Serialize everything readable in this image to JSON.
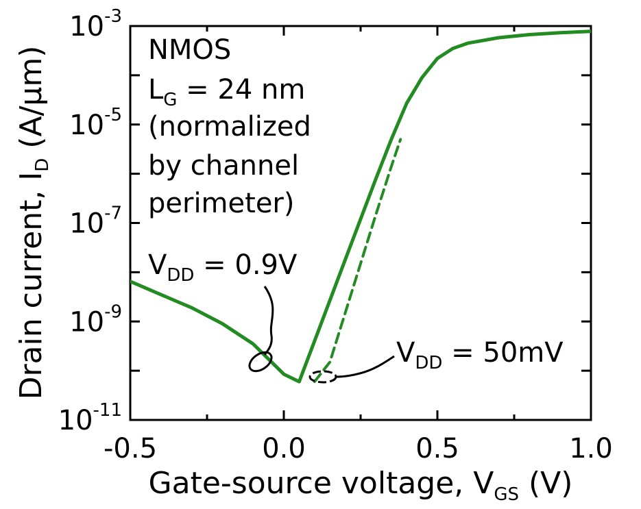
{
  "chart_data": {
    "type": "line",
    "title": "",
    "xlabel": "Gate-source voltage, V",
    "xlabel_sub": "GS",
    "xlabel_unit": " (V)",
    "ylabel": "Drain current, I",
    "ylabel_sub": "D",
    "ylabel_unit": " (A/µm)",
    "xlim": [
      -0.5,
      1.0
    ],
    "ylim": [
      1e-11,
      0.001
    ],
    "yscale": "log",
    "grid": false,
    "x_ticks": [
      {
        "value": -0.5,
        "label": "-0.5"
      },
      {
        "value": 0.0,
        "label": "0.0"
      },
      {
        "value": 0.5,
        "label": "0.5"
      },
      {
        "value": 1.0,
        "label": "1.0"
      }
    ],
    "y_ticks": [
      {
        "value": 1e-11,
        "base": "10",
        "exp": "-11"
      },
      {
        "value": 1e-09,
        "base": "10",
        "exp": "-9"
      },
      {
        "value": 1e-07,
        "base": "10",
        "exp": "-7"
      },
      {
        "value": 1e-05,
        "base": "10",
        "exp": "-5"
      },
      {
        "value": 0.001,
        "base": "10",
        "exp": "-3"
      }
    ],
    "series": [
      {
        "style": "solid",
        "x": [
          -0.5,
          -0.4,
          -0.3,
          -0.2,
          -0.1,
          0.0,
          0.05,
          0.1,
          0.2,
          0.3,
          0.35,
          0.4,
          0.45,
          0.5,
          0.55,
          0.6,
          0.7,
          0.8,
          0.9,
          1.0
        ],
        "y": [
          6.5e-09,
          3.5e-09,
          1.9e-09,
          9e-10,
          3.5e-10,
          8.5e-11,
          6e-11,
          4e-10,
          1.8e-08,
          8e-07,
          5e-06,
          2.7e-05,
          9e-05,
          0.00022,
          0.00035,
          0.00045,
          0.00058,
          0.00067,
          0.00073,
          0.00078
        ]
      },
      {
        "style": "dashed",
        "x": [
          0.1,
          0.15,
          0.2,
          0.25,
          0.3,
          0.35,
          0.38
        ],
        "y": [
          6e-11,
          1.5e-10,
          1.5e-09,
          1.5e-08,
          1.5e-07,
          1.4e-06,
          5e-06
        ]
      }
    ],
    "annotations": [
      {
        "name": "nmos",
        "text": "NMOS"
      },
      {
        "name": "lg",
        "base": "L",
        "sub": "G",
        "rest": " = 24 nm"
      },
      {
        "name": "norm1",
        "text": "(normalized"
      },
      {
        "name": "norm2",
        "text": "by channel"
      },
      {
        "name": "norm3",
        "text": "perimeter)"
      },
      {
        "name": "vdd-high",
        "base": "V",
        "sub": "DD",
        "rest": " = 0.9V"
      },
      {
        "name": "vdd-low",
        "base": "V",
        "sub": "DD",
        "rest": " = 50mV"
      }
    ],
    "series_color": "#228b22"
  }
}
